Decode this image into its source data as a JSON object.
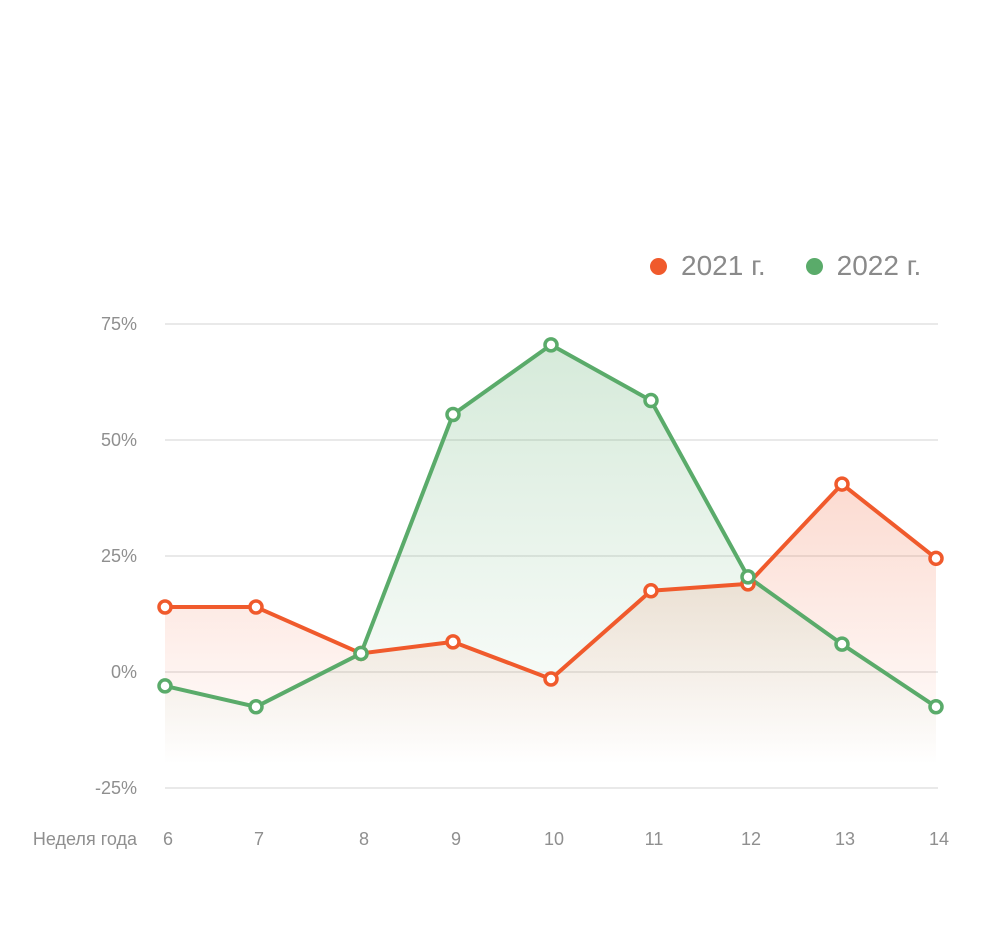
{
  "chart_data": {
    "type": "line",
    "xlabel": "Неделя года",
    "categories": [
      "6",
      "7",
      "8",
      "9",
      "10",
      "11",
      "12",
      "13",
      "14"
    ],
    "yticks": [
      "75%",
      "50%",
      "25%",
      "0%",
      "-25%"
    ],
    "ylim": [
      -25,
      75
    ],
    "grid": true,
    "legend_position": "top-right",
    "series": [
      {
        "name": "2021 г.",
        "color": "#f05a2c",
        "values": [
          14,
          14,
          4,
          6.5,
          -1.5,
          17.5,
          19,
          40.5,
          24.5
        ]
      },
      {
        "name": "2022 г.",
        "color": "#5aab6a",
        "values": [
          -3,
          -7.5,
          4,
          55.5,
          70.5,
          58.5,
          20.5,
          6,
          -7.5
        ]
      }
    ]
  }
}
